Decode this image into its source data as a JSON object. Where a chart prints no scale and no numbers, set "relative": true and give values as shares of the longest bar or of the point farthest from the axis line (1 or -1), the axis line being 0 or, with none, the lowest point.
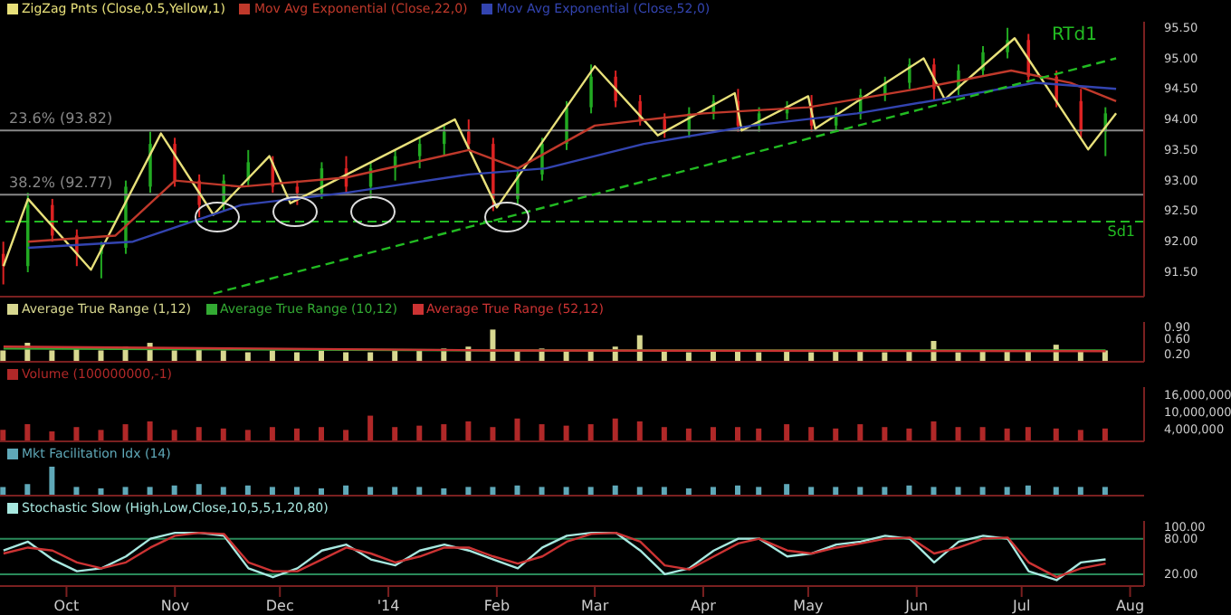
{
  "chart_data": [
    {
      "type": "candlestick",
      "legend": "top left",
      "tick_labels": "y",
      "x": [
        "2013-09-13",
        "2013-09-20",
        "2013-09-27",
        "2013-10-04",
        "2013-10-11",
        "2013-10-18",
        "2013-10-25",
        "2013-11-01",
        "2013-11-08",
        "2013-11-15",
        "2013-11-22",
        "2013-11-29",
        "2013-12-06",
        "2013-12-13",
        "2013-12-20",
        "2013-12-27",
        "2014-01-03",
        "2014-01-10",
        "2014-01-17",
        "2014-01-24",
        "2014-01-31",
        "2014-02-07",
        "2014-02-14",
        "2014-02-21",
        "2014-02-28",
        "2014-03-07",
        "2014-03-14",
        "2014-03-21",
        "2014-03-28",
        "2014-04-04",
        "2014-04-11",
        "2014-04-17",
        "2014-04-25",
        "2014-05-02",
        "2014-05-09",
        "2014-05-16",
        "2014-05-23",
        "2014-05-30",
        "2014-06-06",
        "2014-06-13",
        "2014-06-20",
        "2014-06-27",
        "2014-07-03",
        "2014-07-11",
        "2014-07-18",
        "2014-07-25"
      ],
      "ohlc": [
        [
          91.8,
          92.0,
          91.3,
          91.6
        ],
        [
          91.6,
          92.8,
          91.5,
          92.6
        ],
        [
          92.6,
          92.7,
          92.0,
          92.1
        ],
        [
          92.1,
          92.2,
          91.6,
          91.8
        ],
        [
          91.8,
          92.0,
          91.4,
          91.9
        ],
        [
          91.9,
          93.0,
          91.8,
          92.9
        ],
        [
          92.9,
          93.8,
          92.8,
          93.6
        ],
        [
          93.6,
          93.7,
          92.9,
          93.0
        ],
        [
          93.0,
          93.1,
          92.4,
          92.6
        ],
        [
          92.6,
          93.1,
          92.5,
          93.0
        ],
        [
          93.0,
          93.5,
          92.9,
          93.3
        ],
        [
          93.3,
          93.4,
          92.8,
          92.9
        ],
        [
          92.9,
          93.0,
          92.6,
          92.8
        ],
        [
          92.8,
          93.3,
          92.7,
          93.2
        ],
        [
          93.2,
          93.4,
          92.8,
          92.9
        ],
        [
          92.9,
          93.3,
          92.7,
          93.2
        ],
        [
          93.2,
          93.5,
          93.0,
          93.4
        ],
        [
          93.4,
          93.7,
          93.2,
          93.6
        ],
        [
          93.6,
          93.9,
          93.4,
          93.8
        ],
        [
          93.8,
          94.0,
          93.5,
          93.6
        ],
        [
          93.6,
          93.7,
          92.5,
          92.7
        ],
        [
          92.7,
          93.2,
          92.6,
          93.1
        ],
        [
          93.1,
          93.7,
          93.0,
          93.6
        ],
        [
          93.6,
          94.3,
          93.5,
          94.2
        ],
        [
          94.2,
          94.9,
          94.1,
          94.7
        ],
        [
          94.7,
          94.8,
          94.2,
          94.3
        ],
        [
          94.3,
          94.4,
          93.9,
          94.0
        ],
        [
          94.0,
          94.1,
          93.7,
          93.8
        ],
        [
          93.8,
          94.2,
          93.7,
          94.1
        ],
        [
          94.1,
          94.4,
          94.0,
          94.3
        ],
        [
          94.3,
          94.5,
          93.8,
          93.9
        ],
        [
          93.9,
          94.2,
          93.8,
          94.1
        ],
        [
          94.1,
          94.3,
          94.0,
          94.2
        ],
        [
          94.2,
          94.4,
          93.8,
          93.9
        ],
        [
          93.9,
          94.2,
          93.8,
          94.1
        ],
        [
          94.1,
          94.5,
          94.0,
          94.4
        ],
        [
          94.4,
          94.7,
          94.3,
          94.6
        ],
        [
          94.6,
          95.0,
          94.5,
          94.9
        ],
        [
          94.9,
          95.0,
          94.3,
          94.5
        ],
        [
          94.5,
          94.9,
          94.4,
          94.8
        ],
        [
          94.8,
          95.2,
          94.7,
          95.1
        ],
        [
          95.1,
          95.5,
          95.0,
          95.3
        ],
        [
          95.3,
          95.4,
          94.6,
          94.7
        ],
        [
          94.7,
          94.8,
          94.2,
          94.3
        ],
        [
          94.3,
          94.5,
          93.7,
          93.8
        ],
        [
          93.8,
          94.2,
          93.4,
          94.1
        ]
      ],
      "series": [
        {
          "type": "line",
          "name": "ZigZag Pnts (Close,0.5,Yellow,1)",
          "color": "#e8e07a",
          "x": [
            "2013-09-13",
            "2013-09-20",
            "2013-10-08",
            "2013-10-28",
            "2013-11-12",
            "2013-11-28",
            "2013-12-04",
            "2014-01-20",
            "2014-02-01",
            "2014-03-01",
            "2014-03-19",
            "2014-04-10",
            "2014-04-12",
            "2014-05-01",
            "2014-05-03",
            "2014-06-03",
            "2014-06-09",
            "2014-06-29",
            "2014-07-20",
            "2014-07-28"
          ],
          "values": [
            91.6,
            92.7,
            91.54,
            93.77,
            92.44,
            93.4,
            92.63,
            94.0,
            92.56,
            94.87,
            93.74,
            94.43,
            93.82,
            94.38,
            93.85,
            95.0,
            94.33,
            95.33,
            93.51,
            94.1
          ]
        },
        {
          "type": "line",
          "name": "Mov Avg Exponential (Close,22,0)",
          "color": "#c0392b",
          "x": [
            "2013-09-20",
            "2013-10-15",
            "2013-11-01",
            "2013-11-20",
            "2013-12-20",
            "2014-01-24",
            "2014-02-07",
            "2014-03-01",
            "2014-04-01",
            "2014-05-01",
            "2014-06-01",
            "2014-06-28",
            "2014-07-15",
            "2014-07-28"
          ],
          "values": [
            92.0,
            92.1,
            93.0,
            92.9,
            93.05,
            93.5,
            93.2,
            93.9,
            94.1,
            94.2,
            94.5,
            94.8,
            94.6,
            94.3
          ]
        },
        {
          "type": "line",
          "name": "Mov Avg Exponential (Close,52,0)",
          "color": "#3344b0",
          "x": [
            "2013-09-20",
            "2013-10-20",
            "2013-11-20",
            "2013-12-20",
            "2014-01-24",
            "2014-02-15",
            "2014-03-15",
            "2014-04-15",
            "2014-05-15",
            "2014-06-15",
            "2014-07-05",
            "2014-07-28"
          ],
          "values": [
            91.9,
            92.0,
            92.6,
            92.8,
            93.1,
            93.2,
            93.6,
            93.9,
            94.1,
            94.4,
            94.6,
            94.5
          ]
        },
        {
          "type": "line",
          "color": "#22bb22",
          "line_style": "dashed",
          "x": [
            "2013-11-12",
            "2014-07-28"
          ],
          "values": [
            91.15,
            95.0
          ]
        }
      ],
      "ylim": [
        91.1,
        95.6
      ],
      "yticks": [
        {
          "value": 91.5,
          "label": "91.50"
        },
        {
          "value": 92,
          "label": "92.00"
        },
        {
          "value": 92.5,
          "label": "92.50"
        },
        {
          "value": 93,
          "label": "93.00"
        },
        {
          "value": 93.5,
          "label": "93.50"
        },
        {
          "value": 94,
          "label": "94.00"
        },
        {
          "value": 94.5,
          "label": "94.50"
        },
        {
          "value": 95,
          "label": "95.00"
        },
        {
          "value": 95.5,
          "label": "95.50"
        }
      ],
      "xlim": [
        "2013-09-12",
        "2014-08-05"
      ],
      "ref_lines": [
        {
          "axis": "y",
          "value": 93.82,
          "label": "23.6% (93.82)",
          "color": "#888888"
        },
        {
          "axis": "y",
          "value": 92.77,
          "label": "38.2% (92.77)",
          "color": "#888888"
        },
        {
          "axis": "y",
          "value": 92.33,
          "label": "Sd1",
          "color": "#22bb22",
          "line_style": "dashed"
        }
      ],
      "annotations": [
        "RTd1"
      ]
    },
    {
      "type": "bar",
      "legend": "top left",
      "tick_labels": "y",
      "xlim": [
        "2013-09-12",
        "2014-08-05"
      ],
      "x": [
        "2013-09-13",
        "2013-09-20",
        "2013-09-27",
        "2013-10-04",
        "2013-10-11",
        "2013-10-18",
        "2013-10-25",
        "2013-11-01",
        "2013-11-08",
        "2013-11-15",
        "2013-11-22",
        "2013-11-29",
        "2013-12-06",
        "2013-12-13",
        "2013-12-20",
        "2013-12-27",
        "2014-01-03",
        "2014-01-10",
        "2014-01-17",
        "2014-01-24",
        "2014-01-31",
        "2014-02-07",
        "2014-02-14",
        "2014-02-21",
        "2014-02-28",
        "2014-03-07",
        "2014-03-14",
        "2014-03-21",
        "2014-03-28",
        "2014-04-04",
        "2014-04-11",
        "2014-04-17",
        "2014-04-25",
        "2014-05-02",
        "2014-05-09",
        "2014-05-16",
        "2014-05-23",
        "2014-05-30",
        "2014-06-06",
        "2014-06-13",
        "2014-06-20",
        "2014-06-27",
        "2014-07-03",
        "2014-07-11",
        "2014-07-18",
        "2014-07-25"
      ],
      "series": [
        {
          "name": "Average True Range (1,12)",
          "color": "#d8d890",
          "values": [
            0.3,
            0.5,
            0.3,
            0.35,
            0.3,
            0.4,
            0.5,
            0.3,
            0.35,
            0.3,
            0.25,
            0.3,
            0.25,
            0.3,
            0.25,
            0.25,
            0.3,
            0.3,
            0.35,
            0.4,
            0.85,
            0.3,
            0.35,
            0.3,
            0.3,
            0.4,
            0.7,
            0.3,
            0.25,
            0.3,
            0.3,
            0.25,
            0.3,
            0.25,
            0.3,
            0.3,
            0.25,
            0.3,
            0.55,
            0.25,
            0.3,
            0.3,
            0.3,
            0.45,
            0.3,
            0.3
          ]
        },
        {
          "type": "line",
          "name": "Average True Range (10,12)",
          "color": "#33aa33",
          "x": [
            "2013-09-13",
            "2014-01-31",
            "2014-07-25"
          ],
          "values": [
            0.35,
            0.3,
            0.3
          ]
        },
        {
          "type": "line",
          "name": "Average True Range (52,12)",
          "color": "#cc3333",
          "x": [
            "2013-09-13",
            "2014-01-31",
            "2014-07-25"
          ],
          "values": [
            0.4,
            0.3,
            0.28
          ]
        }
      ],
      "ylim": [
        0,
        1.05
      ],
      "yticks": [
        {
          "value": 0.2,
          "label": "0.20"
        },
        {
          "value": 0.6,
          "label": "0.60"
        },
        {
          "value": 0.9,
          "label": "0.90"
        }
      ]
    },
    {
      "type": "bar",
      "legend": "top left",
      "tick_labels": "y",
      "xlim": [
        "2013-09-12",
        "2014-08-05"
      ],
      "x": [
        "2013-09-13",
        "2013-09-20",
        "2013-09-27",
        "2013-10-04",
        "2013-10-11",
        "2013-10-18",
        "2013-10-25",
        "2013-11-01",
        "2013-11-08",
        "2013-11-15",
        "2013-11-22",
        "2013-11-29",
        "2013-12-06",
        "2013-12-13",
        "2013-12-20",
        "2013-12-27",
        "2014-01-03",
        "2014-01-10",
        "2014-01-17",
        "2014-01-24",
        "2014-01-31",
        "2014-02-07",
        "2014-02-14",
        "2014-02-21",
        "2014-02-28",
        "2014-03-07",
        "2014-03-14",
        "2014-03-21",
        "2014-03-28",
        "2014-04-04",
        "2014-04-11",
        "2014-04-17",
        "2014-04-25",
        "2014-05-02",
        "2014-05-09",
        "2014-05-16",
        "2014-05-23",
        "2014-05-30",
        "2014-06-06",
        "2014-06-13",
        "2014-06-20",
        "2014-06-27",
        "2014-07-03",
        "2014-07-11",
        "2014-07-18",
        "2014-07-25"
      ],
      "series": [
        {
          "name": "Volume (100000000,-1)",
          "color": "#b02828",
          "values": [
            4000000,
            6000000,
            3500000,
            5000000,
            4000000,
            6000000,
            7000000,
            4000000,
            5000000,
            4500000,
            4000000,
            5000000,
            4500000,
            5000000,
            4000000,
            9000000,
            5000000,
            5500000,
            6000000,
            7000000,
            5000000,
            8000000,
            6000000,
            5500000,
            6000000,
            8000000,
            7000000,
            5000000,
            4500000,
            5000000,
            5000000,
            4500000,
            6000000,
            5000000,
            4500000,
            6000000,
            5000000,
            4500000,
            7000000,
            5000000,
            5000000,
            4500000,
            5000000,
            4500000,
            4000000,
            4500000
          ]
        }
      ],
      "ylim": [
        0,
        19000000
      ],
      "yticks": [
        {
          "value": 4000000,
          "label": "4,000,000"
        },
        {
          "value": 10000000,
          "label": "10,000,000"
        },
        {
          "value": 16000000,
          "label": "16,000,000"
        }
      ]
    },
    {
      "type": "bar",
      "legend": "top left",
      "tick_labels": false,
      "relative": true,
      "xlim": [
        "2013-09-12",
        "2014-08-05"
      ],
      "x": [
        "2013-09-13",
        "2013-09-20",
        "2013-09-27",
        "2013-10-04",
        "2013-10-11",
        "2013-10-18",
        "2013-10-25",
        "2013-11-01",
        "2013-11-08",
        "2013-11-15",
        "2013-11-22",
        "2013-11-29",
        "2013-12-06",
        "2013-12-13",
        "2013-12-20",
        "2013-12-27",
        "2014-01-03",
        "2014-01-10",
        "2014-01-17",
        "2014-01-24",
        "2014-01-31",
        "2014-02-07",
        "2014-02-14",
        "2014-02-21",
        "2014-02-28",
        "2014-03-07",
        "2014-03-14",
        "2014-03-21",
        "2014-03-28",
        "2014-04-04",
        "2014-04-11",
        "2014-04-17",
        "2014-04-25",
        "2014-05-02",
        "2014-05-09",
        "2014-05-16",
        "2014-05-23",
        "2014-05-30",
        "2014-06-06",
        "2014-06-13",
        "2014-06-20",
        "2014-06-27",
        "2014-07-03",
        "2014-07-11",
        "2014-07-18",
        "2014-07-25"
      ],
      "series": [
        {
          "name": "Mkt Facilitation Idx (14)",
          "color": "#5fa8b8",
          "values": [
            0.3,
            0.4,
            1,
            0.3,
            0.25,
            0.3,
            0.3,
            0.35,
            0.4,
            0.3,
            0.35,
            0.3,
            0.3,
            0.25,
            0.35,
            0.3,
            0.3,
            0.3,
            0.25,
            0.3,
            0.3,
            0.35,
            0.3,
            0.3,
            0.3,
            0.35,
            0.3,
            0.3,
            0.25,
            0.3,
            0.35,
            0.3,
            0.4,
            0.3,
            0.3,
            0.3,
            0.3,
            0.35,
            0.3,
            0.3,
            0.3,
            0.3,
            0.35,
            0.3,
            0.3,
            0.3
          ]
        }
      ]
    },
    {
      "type": "line",
      "legend": "top left",
      "x": [
        "2013-09-13",
        "2013-09-20",
        "2013-09-27",
        "2013-10-04",
        "2013-10-11",
        "2013-10-18",
        "2013-10-25",
        "2013-11-01",
        "2013-11-08",
        "2013-11-15",
        "2013-11-22",
        "2013-11-29",
        "2013-12-06",
        "2013-12-13",
        "2013-12-20",
        "2013-12-27",
        "2014-01-03",
        "2014-01-10",
        "2014-01-17",
        "2014-01-24",
        "2014-01-31",
        "2014-02-07",
        "2014-02-14",
        "2014-02-21",
        "2014-02-28",
        "2014-03-07",
        "2014-03-14",
        "2014-03-21",
        "2014-03-28",
        "2014-04-04",
        "2014-04-11",
        "2014-04-17",
        "2014-04-25",
        "2014-05-02",
        "2014-05-09",
        "2014-05-16",
        "2014-05-23",
        "2014-05-30",
        "2014-06-06",
        "2014-06-13",
        "2014-06-20",
        "2014-06-27",
        "2014-07-03",
        "2014-07-11",
        "2014-07-18",
        "2014-07-25"
      ],
      "series": [
        {
          "name": "Stochastic Slow (High,Low,Close,10,5,5,1,20,80)",
          "color": "#a8e8e0",
          "values": [
            60,
            75,
            45,
            25,
            30,
            50,
            80,
            90,
            90,
            85,
            30,
            15,
            30,
            60,
            70,
            45,
            35,
            60,
            70,
            60,
            45,
            30,
            65,
            85,
            90,
            90,
            60,
            20,
            30,
            60,
            80,
            80,
            50,
            55,
            70,
            75,
            85,
            80,
            40,
            75,
            85,
            80,
            25,
            10,
            40,
            45
          ]
        },
        {
          "color": "#cc3333",
          "values": [
            55,
            65,
            60,
            40,
            30,
            40,
            65,
            85,
            90,
            88,
            40,
            25,
            25,
            45,
            65,
            55,
            40,
            50,
            65,
            65,
            50,
            38,
            50,
            75,
            88,
            90,
            75,
            35,
            28,
            50,
            72,
            80,
            60,
            55,
            65,
            72,
            80,
            82,
            55,
            65,
            80,
            82,
            40,
            15,
            30,
            38
          ]
        }
      ],
      "ylim": [
        0,
        110
      ],
      "yticks": [
        {
          "value": 20,
          "label": "20.00"
        },
        {
          "value": 80,
          "label": "80.00"
        },
        {
          "value": 100,
          "label": "100.00"
        }
      ],
      "ref_lines": [
        {
          "axis": "y",
          "value": 80,
          "color": "#2a8a5a"
        },
        {
          "axis": "y",
          "value": 20,
          "color": "#2a8a5a"
        }
      ],
      "xlim": [
        "2013-09-12",
        "2014-08-05"
      ],
      "xticks": [
        {
          "value": "2013-10-01",
          "label": "Oct"
        },
        {
          "value": "2013-11-01",
          "label": "Nov"
        },
        {
          "value": "2013-12-01",
          "label": "Dec"
        },
        {
          "value": "2014-01-01",
          "label": "'14"
        },
        {
          "value": "2014-02-01",
          "label": "Feb"
        },
        {
          "value": "2014-03-01",
          "label": "Mar"
        },
        {
          "value": "2014-04-01",
          "label": "Apr"
        },
        {
          "value": "2014-05-01",
          "label": "May"
        },
        {
          "value": "2014-06-01",
          "label": "Jun"
        },
        {
          "value": "2014-07-01",
          "label": "Jul"
        },
        {
          "value": "2014-08-01",
          "label": "Aug"
        }
      ]
    }
  ]
}
